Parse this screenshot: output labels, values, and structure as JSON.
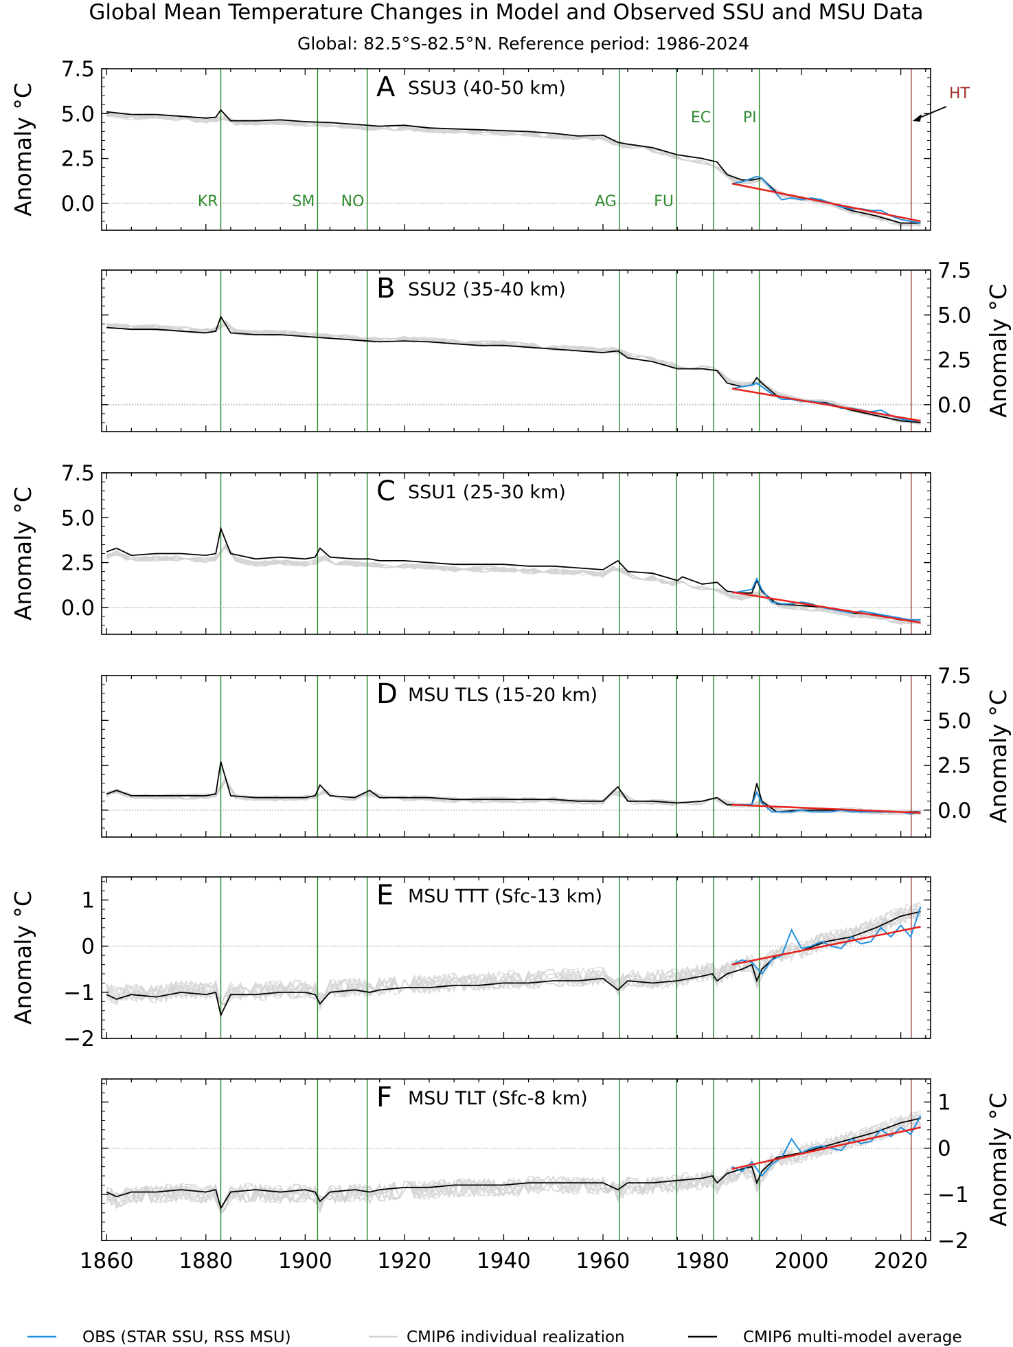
{
  "title": "Global Mean Temperature Changes in Model and Observed SSU and MSU Data",
  "subtitle": "Global: 82.5°S-82.5°N. Reference period: 1986-2024",
  "colors": {
    "obs": "#1f8fe0",
    "cmip6_individual": "#d3d3d3",
    "cmip6_mean": "#000000",
    "trend": "#e8201a",
    "volcano": "#2e8b2e",
    "ht": "#a05050"
  },
  "legend": {
    "obs": "OBS (STAR SSU, RSS MSU)",
    "individual": "CMIP6 individual realization",
    "mean": "CMIP6 multi-model average"
  },
  "x_axis": {
    "range": [
      1859,
      2026
    ],
    "ticks": [
      1860,
      1880,
      1900,
      1920,
      1940,
      1960,
      1980,
      2000,
      2020
    ]
  },
  "events": [
    {
      "label": "KR",
      "year": 1883
    },
    {
      "label": "SM",
      "year": 1902.5
    },
    {
      "label": "NO",
      "year": 1912.5
    },
    {
      "label": "AG",
      "year": 1963.3
    },
    {
      "label": "FU",
      "year": 1974.8
    },
    {
      "label": "EC",
      "year": 1982.3
    },
    {
      "label": "PI",
      "year": 1991.5
    }
  ],
  "ht_marker": {
    "label": "HT",
    "year": 2022.1
  },
  "chart_data": [
    {
      "type": "line",
      "letter": "A",
      "panel_title": "SSU3 (40-50 km)",
      "ylabel": "Anomaly °C",
      "ylabel_side": "left",
      "ylim": [
        -1.5,
        7.5
      ],
      "yticks": [
        0.0,
        2.5,
        5.0,
        7.5
      ],
      "ytick_labels": [
        "0.0",
        "2.5",
        "5.0",
        "7.5"
      ],
      "series": [
        {
          "name": "CMIP6 multi-model average",
          "x": [
            1860,
            1865,
            1870,
            1875,
            1880,
            1882,
            1883,
            1885,
            1890,
            1895,
            1900,
            1905,
            1910,
            1915,
            1920,
            1925,
            1930,
            1935,
            1940,
            1945,
            1950,
            1955,
            1960,
            1963,
            1965,
            1970,
            1975,
            1980,
            1983,
            1985,
            1988,
            1990,
            1992,
            1995,
            2000,
            2005,
            2010,
            2015,
            2020,
            2024
          ],
          "y": [
            5.1,
            4.95,
            4.95,
            4.85,
            4.75,
            4.8,
            5.2,
            4.6,
            4.6,
            4.65,
            4.55,
            4.5,
            4.4,
            4.3,
            4.35,
            4.2,
            4.15,
            4.1,
            4.05,
            4.0,
            3.9,
            3.75,
            3.8,
            3.4,
            3.3,
            3.1,
            2.7,
            2.5,
            2.3,
            1.6,
            1.3,
            1.3,
            1.4,
            0.6,
            0.3,
            0.1,
            -0.4,
            -0.7,
            -1.1,
            -1.1
          ]
        },
        {
          "name": "OBS (STAR SSU, RSS MSU)",
          "x": [
            1986,
            1988,
            1990,
            1991,
            1992,
            1994,
            1996,
            1998,
            2000,
            2002,
            2004,
            2006,
            2008,
            2010,
            2012,
            2014,
            2016,
            2018,
            2020,
            2022,
            2024
          ],
          "y": [
            1.1,
            1.2,
            1.4,
            1.5,
            1.4,
            0.8,
            0.2,
            0.3,
            0.2,
            0.3,
            0.2,
            0.0,
            -0.2,
            -0.3,
            -0.3,
            -0.4,
            -0.4,
            -0.7,
            -0.9,
            -1.0,
            -1.1
          ]
        },
        {
          "name": "trend",
          "x": [
            1986,
            2024
          ],
          "y": [
            1.1,
            -1.0
          ]
        }
      ]
    },
    {
      "type": "line",
      "letter": "B",
      "panel_title": "SSU2 (35-40 km)",
      "ylabel": "Anomaly °C",
      "ylabel_side": "right",
      "ylim": [
        -1.5,
        7.5
      ],
      "yticks": [
        0.0,
        2.5,
        5.0,
        7.5
      ],
      "ytick_labels": [
        "0.0",
        "2.5",
        "5.0",
        "7.5"
      ],
      "series": [
        {
          "name": "CMIP6 multi-model average",
          "x": [
            1860,
            1865,
            1870,
            1875,
            1880,
            1882,
            1883,
            1885,
            1890,
            1895,
            1900,
            1905,
            1910,
            1915,
            1920,
            1925,
            1930,
            1935,
            1940,
            1945,
            1950,
            1955,
            1960,
            1963,
            1965,
            1970,
            1975,
            1980,
            1983,
            1985,
            1988,
            1990,
            1991,
            1992,
            1995,
            2000,
            2005,
            2010,
            2015,
            2020,
            2024
          ],
          "y": [
            4.3,
            4.2,
            4.2,
            4.1,
            4.0,
            4.1,
            4.9,
            4.0,
            3.9,
            3.9,
            3.8,
            3.7,
            3.6,
            3.5,
            3.55,
            3.5,
            3.4,
            3.3,
            3.3,
            3.2,
            3.1,
            3.0,
            2.9,
            3.0,
            2.6,
            2.4,
            2.0,
            2.0,
            1.9,
            1.2,
            1.0,
            1.1,
            1.5,
            1.2,
            0.5,
            0.2,
            0.1,
            -0.3,
            -0.6,
            -0.9,
            -1.0
          ]
        },
        {
          "name": "OBS (STAR SSU, RSS MSU)",
          "x": [
            1986,
            1988,
            1990,
            1991,
            1992,
            1994,
            1996,
            1998,
            2000,
            2002,
            2004,
            2006,
            2008,
            2010,
            2012,
            2014,
            2016,
            2018,
            2020,
            2022,
            2024
          ],
          "y": [
            0.9,
            1.0,
            1.1,
            1.2,
            1.0,
            0.6,
            0.3,
            0.3,
            0.2,
            0.2,
            0.1,
            0.0,
            -0.2,
            -0.2,
            -0.3,
            -0.4,
            -0.3,
            -0.6,
            -0.8,
            -0.9,
            -0.9
          ]
        },
        {
          "name": "trend",
          "x": [
            1986,
            2024
          ],
          "y": [
            0.9,
            -0.9
          ]
        }
      ]
    },
    {
      "type": "line",
      "letter": "C",
      "panel_title": "SSU1 (25-30 km)",
      "ylabel": "Anomaly °C",
      "ylabel_side": "left",
      "ylim": [
        -1.5,
        7.5
      ],
      "yticks": [
        0.0,
        2.5,
        5.0,
        7.5
      ],
      "ytick_labels": [
        "0.0",
        "2.5",
        "5.0",
        "7.5"
      ],
      "series": [
        {
          "name": "CMIP6 multi-model average",
          "x": [
            1860,
            1862,
            1865,
            1870,
            1875,
            1880,
            1882,
            1883,
            1885,
            1890,
            1895,
            1900,
            1902,
            1903,
            1905,
            1910,
            1913,
            1915,
            1920,
            1925,
            1930,
            1935,
            1940,
            1945,
            1950,
            1955,
            1960,
            1963,
            1965,
            1970,
            1975,
            1976,
            1980,
            1983,
            1985,
            1988,
            1990,
            1991,
            1992,
            1995,
            2000,
            2005,
            2010,
            2015,
            2020,
            2024
          ],
          "y": [
            3.1,
            3.3,
            2.9,
            3.0,
            3.0,
            2.9,
            3.0,
            4.4,
            3.0,
            2.7,
            2.8,
            2.7,
            2.8,
            3.3,
            2.8,
            2.7,
            2.7,
            2.6,
            2.6,
            2.5,
            2.4,
            2.4,
            2.4,
            2.3,
            2.3,
            2.2,
            2.1,
            2.6,
            2.0,
            1.9,
            1.5,
            1.7,
            1.3,
            1.4,
            0.9,
            0.8,
            0.8,
            1.5,
            0.9,
            0.2,
            0.1,
            0.0,
            -0.3,
            -0.4,
            -0.7,
            -0.7
          ]
        },
        {
          "name": "OBS (STAR SSU, RSS MSU)",
          "x": [
            1986,
            1988,
            1990,
            1991,
            1992,
            1994,
            1996,
            1998,
            2000,
            2002,
            2004,
            2006,
            2008,
            2010,
            2012,
            2014,
            2016,
            2018,
            2020,
            2022,
            2024
          ],
          "y": [
            0.8,
            0.9,
            1.0,
            1.6,
            1.0,
            0.3,
            0.2,
            0.2,
            0.3,
            0.2,
            0.0,
            -0.1,
            -0.2,
            -0.3,
            -0.2,
            -0.3,
            -0.4,
            -0.5,
            -0.6,
            -0.7,
            -0.7
          ]
        },
        {
          "name": "trend",
          "x": [
            1986,
            2024
          ],
          "y": [
            0.85,
            -0.85
          ]
        }
      ]
    },
    {
      "type": "line",
      "letter": "D",
      "panel_title": "MSU TLS (15-20 km)",
      "ylabel": "Anomaly °C",
      "ylabel_side": "right",
      "ylim": [
        -1.5,
        7.5
      ],
      "yticks": [
        0.0,
        2.5,
        5.0,
        7.5
      ],
      "ytick_labels": [
        "0.0",
        "2.5",
        "5.0",
        "7.5"
      ],
      "series": [
        {
          "name": "CMIP6 multi-model average",
          "x": [
            1860,
            1862,
            1865,
            1870,
            1875,
            1880,
            1882,
            1883,
            1885,
            1890,
            1895,
            1900,
            1902,
            1903,
            1905,
            1910,
            1913,
            1915,
            1920,
            1925,
            1930,
            1935,
            1940,
            1945,
            1950,
            1955,
            1960,
            1963,
            1965,
            1970,
            1975,
            1980,
            1983,
            1985,
            1988,
            1990,
            1991,
            1992,
            1995,
            2000,
            2005,
            2010,
            2015,
            2020,
            2024
          ],
          "y": [
            0.9,
            1.1,
            0.8,
            0.8,
            0.8,
            0.8,
            0.9,
            2.7,
            0.8,
            0.7,
            0.7,
            0.7,
            0.8,
            1.4,
            0.8,
            0.7,
            1.1,
            0.7,
            0.7,
            0.7,
            0.6,
            0.6,
            0.6,
            0.6,
            0.6,
            0.5,
            0.5,
            1.3,
            0.5,
            0.5,
            0.4,
            0.5,
            0.7,
            0.3,
            0.3,
            0.3,
            1.5,
            0.5,
            -0.1,
            0.0,
            0.0,
            0.0,
            -0.1,
            -0.1,
            -0.1
          ]
        },
        {
          "name": "OBS (STAR SSU, RSS MSU)",
          "x": [
            1986,
            1988,
            1990,
            1991,
            1992,
            1994,
            1996,
            1998,
            2000,
            2002,
            2004,
            2006,
            2008,
            2010,
            2012,
            2014,
            2016,
            2018,
            2020,
            2022,
            2024
          ],
          "y": [
            0.3,
            0.3,
            0.3,
            1.0,
            0.4,
            -0.1,
            -0.1,
            -0.1,
            0.0,
            -0.1,
            -0.1,
            -0.1,
            0.0,
            -0.1,
            -0.1,
            -0.1,
            -0.1,
            -0.1,
            -0.1,
            -0.2,
            -0.1
          ]
        },
        {
          "name": "trend",
          "x": [
            1986,
            2024
          ],
          "y": [
            0.3,
            -0.15
          ]
        }
      ]
    },
    {
      "type": "line",
      "letter": "E",
      "panel_title": "MSU TTT (Sfc-13 km)",
      "ylabel": "Anomaly °C",
      "ylabel_side": "left",
      "ylim": [
        -2,
        1.5
      ],
      "yticks": [
        -2,
        -1,
        0,
        1
      ],
      "ytick_labels": [
        "−2",
        "−1",
        "0",
        "1"
      ],
      "series": [
        {
          "name": "CMIP6 multi-model average",
          "x": [
            1860,
            1862,
            1865,
            1870,
            1875,
            1880,
            1882,
            1883,
            1885,
            1890,
            1895,
            1900,
            1902,
            1903,
            1905,
            1910,
            1913,
            1915,
            1920,
            1925,
            1930,
            1935,
            1940,
            1945,
            1950,
            1955,
            1960,
            1963,
            1965,
            1970,
            1975,
            1980,
            1982,
            1983,
            1985,
            1988,
            1990,
            1991,
            1992,
            1995,
            2000,
            2005,
            2010,
            2015,
            2020,
            2024
          ],
          "y": [
            -1.05,
            -1.15,
            -1.05,
            -1.1,
            -1.0,
            -1.05,
            -1.0,
            -1.5,
            -1.05,
            -1.05,
            -1.0,
            -1.0,
            -1.05,
            -1.25,
            -1.0,
            -0.95,
            -1.0,
            -0.95,
            -0.9,
            -0.9,
            -0.85,
            -0.85,
            -0.8,
            -0.8,
            -0.75,
            -0.75,
            -0.7,
            -0.95,
            -0.75,
            -0.8,
            -0.75,
            -0.65,
            -0.6,
            -0.75,
            -0.6,
            -0.5,
            -0.4,
            -0.75,
            -0.5,
            -0.2,
            -0.1,
            0.1,
            0.2,
            0.4,
            0.65,
            0.75
          ]
        },
        {
          "name": "OBS (STAR SSU, RSS MSU)",
          "x": [
            1986,
            1988,
            1990,
            1992,
            1994,
            1996,
            1998,
            2000,
            2002,
            2004,
            2006,
            2008,
            2010,
            2012,
            2014,
            2016,
            2018,
            2020,
            2022,
            2024
          ],
          "y": [
            -0.4,
            -0.3,
            -0.35,
            -0.6,
            -0.3,
            -0.2,
            0.35,
            -0.05,
            0.0,
            0.1,
            0.0,
            -0.05,
            0.2,
            0.05,
            0.1,
            0.4,
            0.2,
            0.45,
            0.2,
            0.85
          ]
        },
        {
          "name": "trend",
          "x": [
            1986,
            2024
          ],
          "y": [
            -0.4,
            0.42
          ]
        }
      ]
    },
    {
      "type": "line",
      "letter": "F",
      "panel_title": "MSU TLT (Sfc-8 km)",
      "ylabel": "Anomaly °C",
      "ylabel_side": "right",
      "ylim": [
        -2,
        1.5
      ],
      "yticks": [
        -2,
        -1,
        0,
        1
      ],
      "ytick_labels": [
        "−2",
        "−1",
        "0",
        "1"
      ],
      "series": [
        {
          "name": "CMIP6 multi-model average",
          "x": [
            1860,
            1862,
            1865,
            1870,
            1875,
            1880,
            1882,
            1883,
            1885,
            1890,
            1895,
            1900,
            1902,
            1903,
            1905,
            1910,
            1913,
            1915,
            1920,
            1925,
            1930,
            1935,
            1940,
            1945,
            1950,
            1955,
            1960,
            1963,
            1965,
            1970,
            1975,
            1980,
            1982,
            1983,
            1985,
            1988,
            1990,
            1991,
            1992,
            1995,
            2000,
            2005,
            2010,
            2015,
            2020,
            2024
          ],
          "y": [
            -0.95,
            -1.05,
            -0.95,
            -0.95,
            -0.9,
            -0.95,
            -0.9,
            -1.3,
            -0.95,
            -0.9,
            -0.95,
            -0.9,
            -0.95,
            -1.15,
            -0.95,
            -0.9,
            -0.95,
            -0.9,
            -0.85,
            -0.85,
            -0.8,
            -0.8,
            -0.8,
            -0.75,
            -0.75,
            -0.75,
            -0.75,
            -0.9,
            -0.75,
            -0.75,
            -0.7,
            -0.65,
            -0.6,
            -0.75,
            -0.55,
            -0.45,
            -0.4,
            -0.75,
            -0.5,
            -0.2,
            -0.1,
            0.05,
            0.2,
            0.35,
            0.55,
            0.65
          ]
        },
        {
          "name": "OBS (STAR SSU, RSS MSU)",
          "x": [
            1986,
            1988,
            1990,
            1992,
            1994,
            1996,
            1998,
            2000,
            2002,
            2004,
            2006,
            2008,
            2010,
            2012,
            2014,
            2016,
            2018,
            2020,
            2022,
            2024
          ],
          "y": [
            -0.4,
            -0.5,
            -0.3,
            -0.6,
            -0.35,
            -0.2,
            0.2,
            -0.1,
            0.0,
            0.05,
            0.0,
            -0.05,
            0.2,
            0.1,
            0.15,
            0.4,
            0.25,
            0.45,
            0.3,
            0.7
          ]
        },
        {
          "name": "trend",
          "x": [
            1986,
            2024
          ],
          "y": [
            -0.45,
            0.45
          ]
        }
      ]
    }
  ]
}
